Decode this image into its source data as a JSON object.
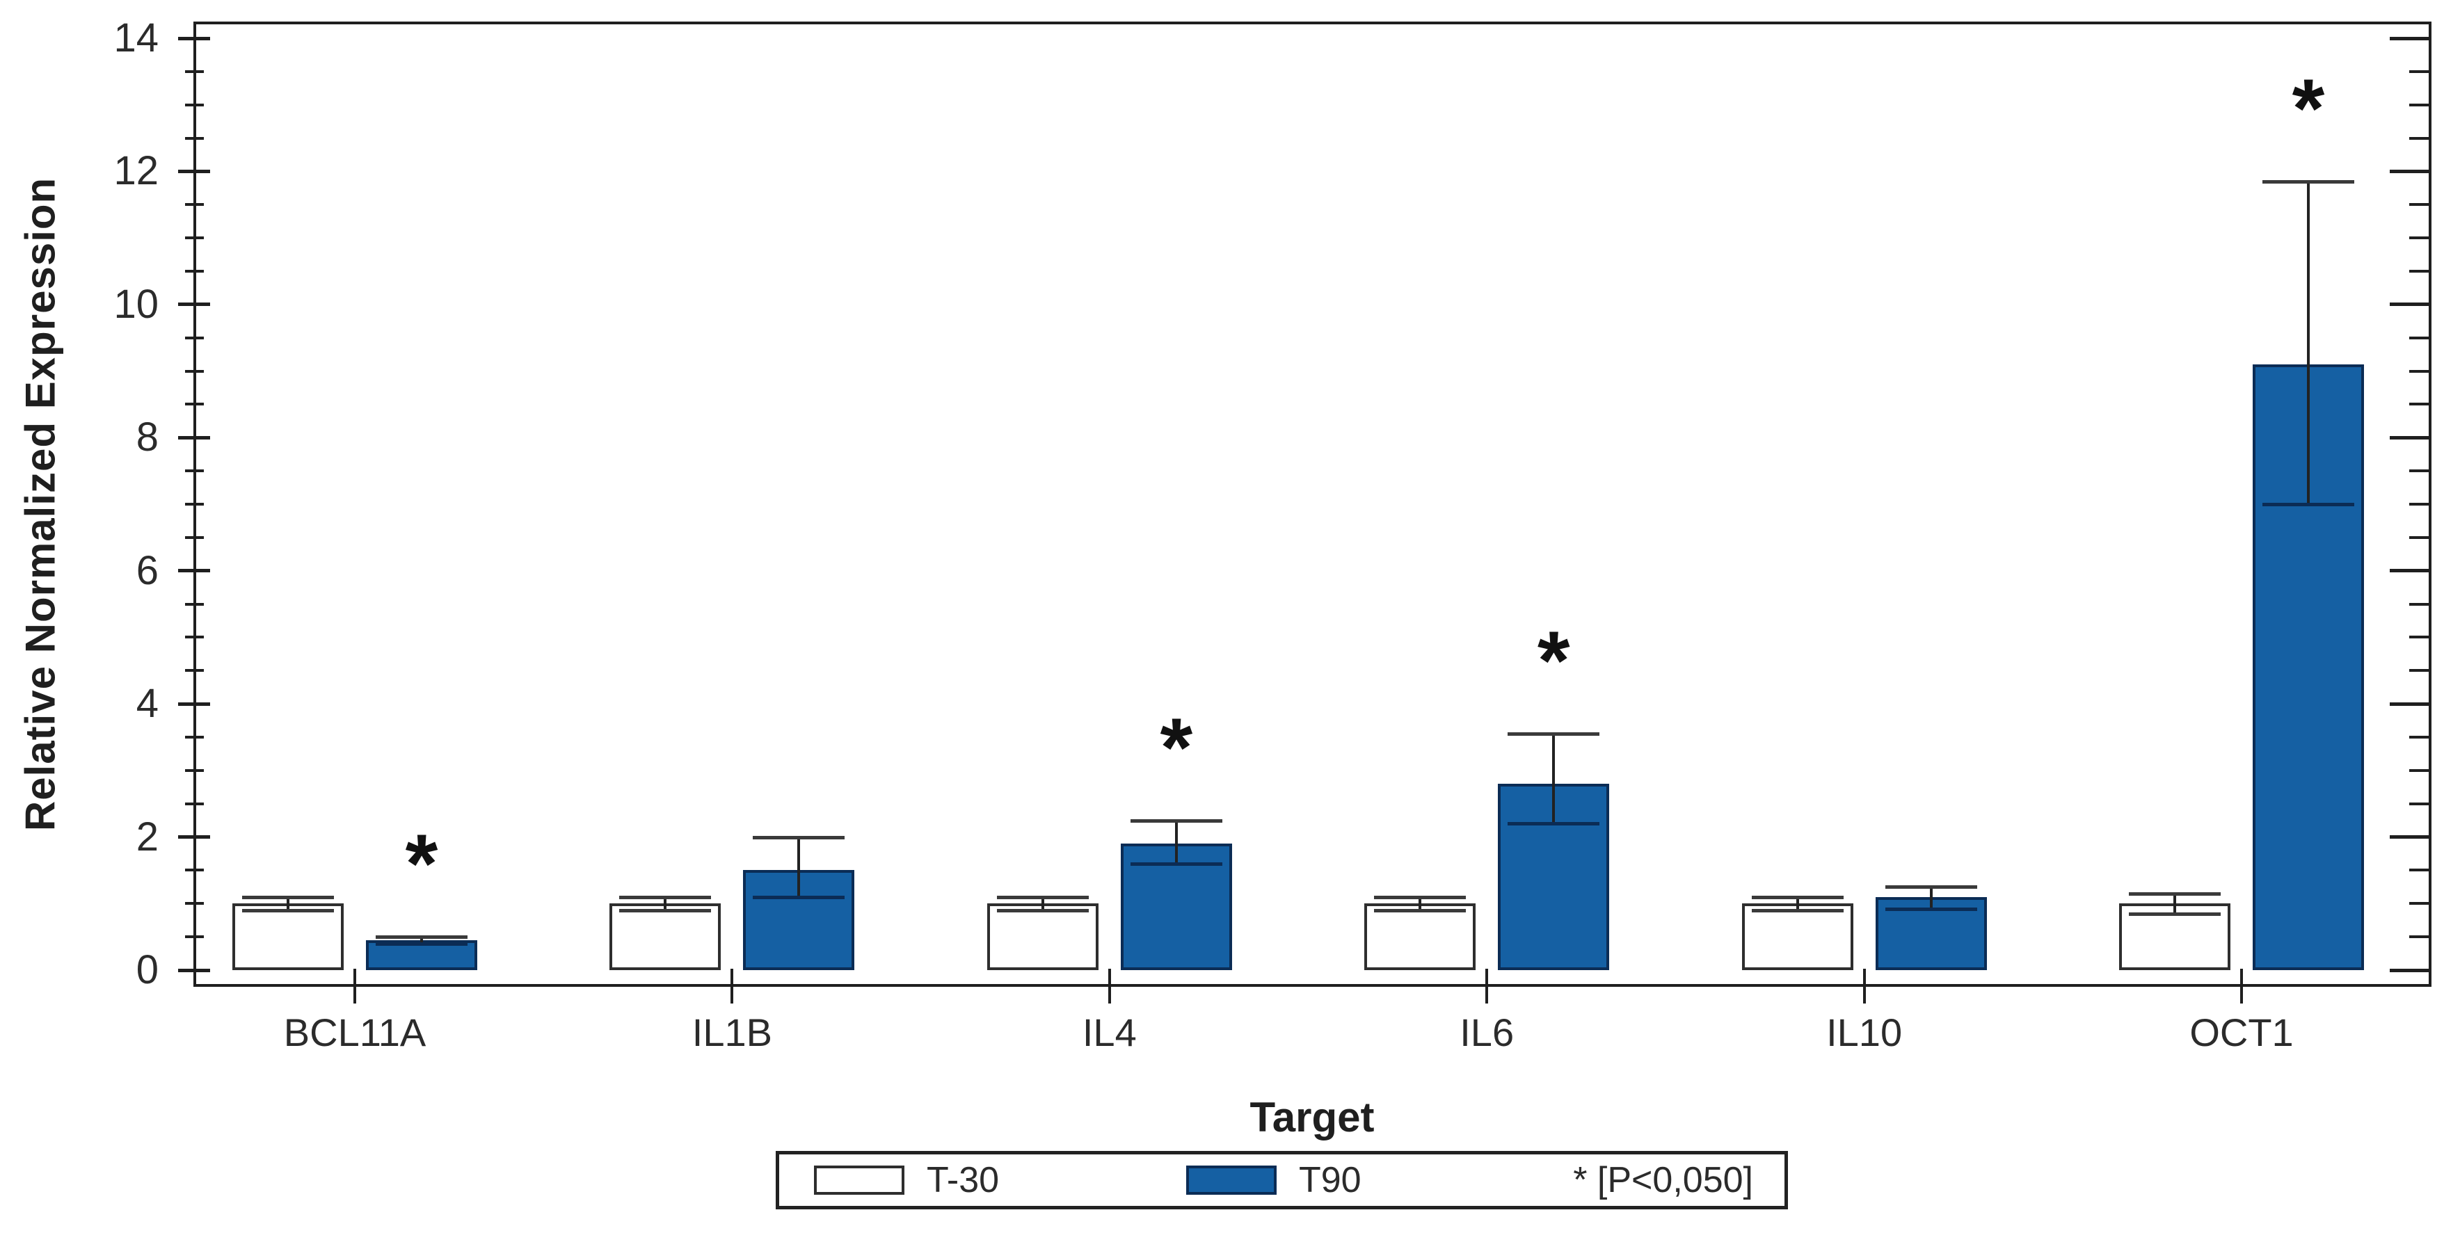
{
  "chart_data": {
    "type": "bar",
    "title": "",
    "xlabel": "Target",
    "ylabel": "Relative Normalized Expression",
    "ylim": [
      0,
      14
    ],
    "y_major_step": 2,
    "y_minor_step": 0.5,
    "y_tick_labels": [
      "0",
      "2",
      "4",
      "6",
      "8",
      "10",
      "12",
      "14"
    ],
    "categories": [
      "BCL11A",
      "IL1B",
      "IL4",
      "IL6",
      "IL10",
      "OCT1"
    ],
    "series": [
      {
        "name": "T-30",
        "fill": "#FFFFFF",
        "border": "#2E2E2E",
        "values": [
          1.0,
          1.0,
          1.0,
          1.0,
          1.0,
          1.0
        ],
        "err_low": [
          0.9,
          0.9,
          0.9,
          0.9,
          0.9,
          0.85
        ],
        "err_high": [
          1.1,
          1.1,
          1.1,
          1.1,
          1.1,
          1.15
        ],
        "significant": [
          false,
          false,
          false,
          false,
          false,
          false
        ]
      },
      {
        "name": "T90",
        "fill": "#1560A3",
        "border": "#0B2C55",
        "values": [
          0.45,
          1.5,
          1.9,
          2.8,
          1.1,
          9.1
        ],
        "err_low": [
          0.4,
          1.1,
          1.6,
          2.2,
          0.92,
          7.0
        ],
        "err_high": [
          0.5,
          2.0,
          2.25,
          3.55,
          1.25,
          11.85
        ],
        "significant": [
          true,
          false,
          true,
          true,
          false,
          true
        ]
      }
    ],
    "sig_marker": "*",
    "grid": false,
    "legend_position": "bottom",
    "legend": {
      "entries": [
        {
          "label": "T-30"
        },
        {
          "label": "T90"
        }
      ],
      "note": "* [P<0,050]"
    }
  }
}
